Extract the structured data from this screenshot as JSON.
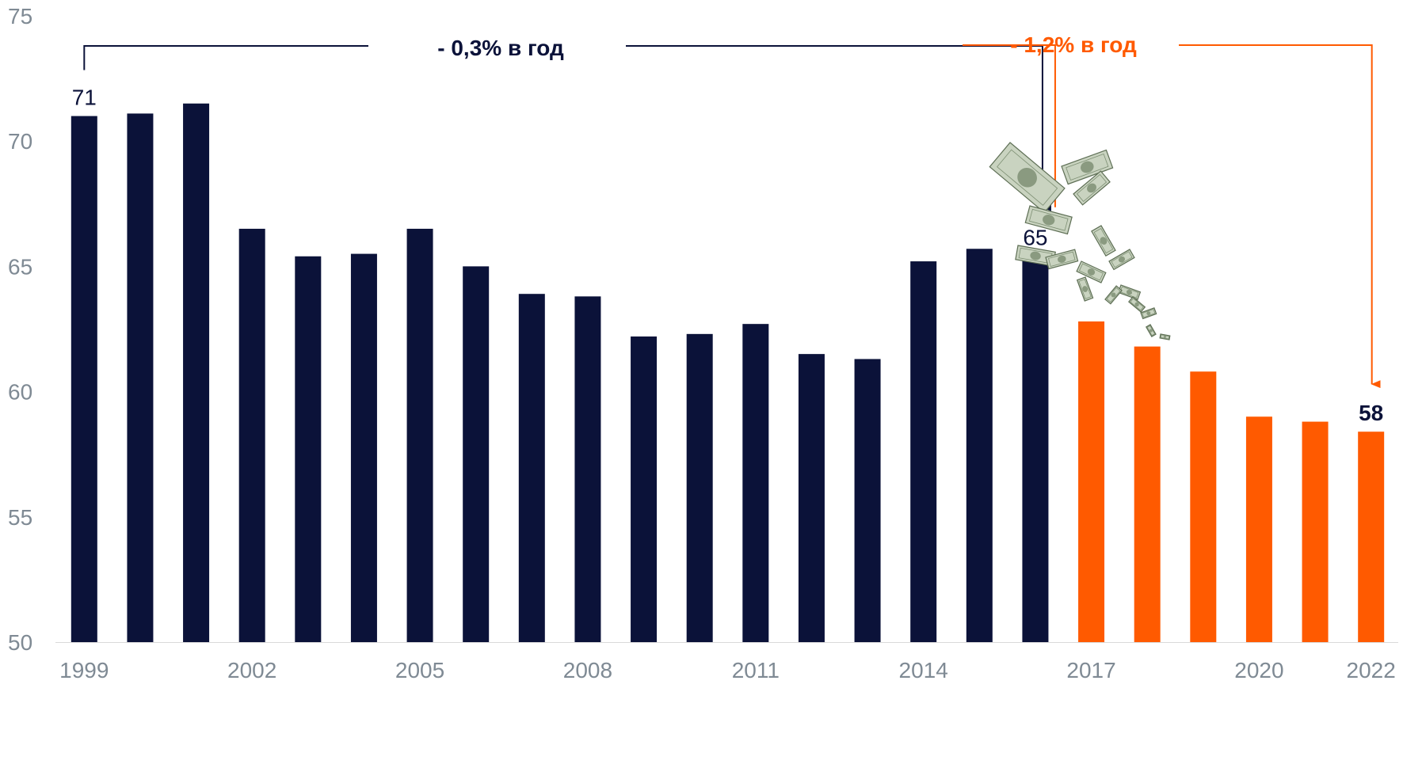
{
  "chart_data": {
    "type": "bar",
    "title": "",
    "xlabel": "",
    "ylabel": "",
    "ylim": [
      50,
      75
    ],
    "yticks": [
      50,
      55,
      60,
      65,
      70,
      75
    ],
    "xtick_labels": [
      "1999",
      "2002",
      "2005",
      "2008",
      "2011",
      "2014",
      "2017",
      "2020",
      "2022"
    ],
    "categories": [
      "1999",
      "2000",
      "2001",
      "2002",
      "2003",
      "2004",
      "2005",
      "2006",
      "2007",
      "2008",
      "2009",
      "2010",
      "2011",
      "2012",
      "2013",
      "2014",
      "2015",
      "2016",
      "2017",
      "2018",
      "2019",
      "2020",
      "2021",
      "2022"
    ],
    "values": [
      71.0,
      71.1,
      71.5,
      66.5,
      65.4,
      65.5,
      66.5,
      65.0,
      63.9,
      63.8,
      62.2,
      62.3,
      62.7,
      61.5,
      61.3,
      65.2,
      65.7,
      65.4,
      62.8,
      61.8,
      60.8,
      59.0,
      58.8,
      58.4
    ],
    "colors": {
      "dark": "#0b1239",
      "accent": "#ff5a00",
      "axis_text": "#7f8a94"
    },
    "highlight_from_index": 18,
    "data_labels": [
      {
        "category": "1999",
        "text": "71"
      },
      {
        "category": "2016",
        "text": "65"
      },
      {
        "category": "2022",
        "text": "58"
      }
    ],
    "annotations": [
      {
        "text": "- 0,3% в год",
        "from": "1999",
        "to": "2016",
        "color": "#0b1239"
      },
      {
        "text": "- 1,2% в год",
        "from": "2016",
        "to": "2022",
        "color": "#ff5a00"
      }
    ],
    "decoration_icon": "falling-dollar-bills"
  }
}
